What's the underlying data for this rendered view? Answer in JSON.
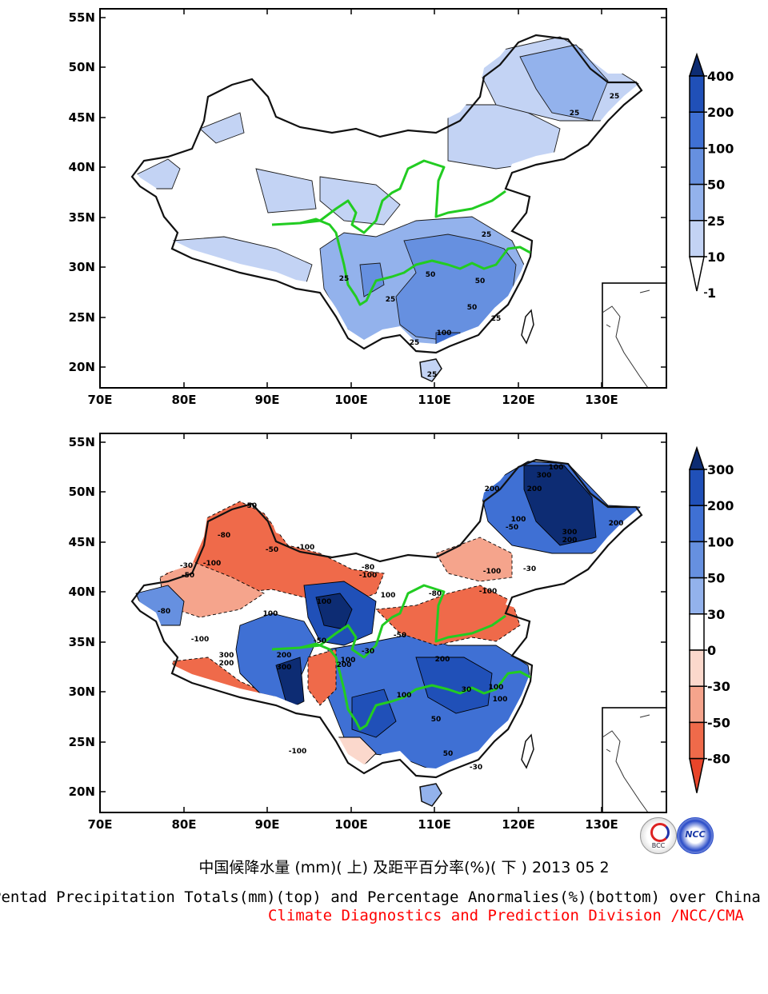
{
  "maps": [
    {
      "id": "top",
      "lat_labels": [
        "55N",
        "50N",
        "45N",
        "40N",
        "35N",
        "30N",
        "25N",
        "20N"
      ],
      "lon_labels": [
        "70E",
        "80E",
        "90E",
        "100E",
        "110E",
        "120E",
        "130E"
      ],
      "colorbar": {
        "labels": [
          "400",
          "200",
          "100",
          "50",
          "25",
          "10",
          "1"
        ],
        "colors": [
          "#0d2c73",
          "#2050b8",
          "#3f70d4",
          "#6690e0",
          "#93b2ec",
          "#c3d3f4",
          "#ffffff"
        ]
      },
      "contour_labels": [
        "25",
        "25",
        "25",
        "25",
        "50",
        "50",
        "50",
        "100",
        "25",
        "25",
        "25",
        "25"
      ]
    },
    {
      "id": "bottom",
      "lat_labels": [
        "55N",
        "50N",
        "45N",
        "40N",
        "35N",
        "30N",
        "25N",
        "20N"
      ],
      "lon_labels": [
        "70E",
        "80E",
        "90E",
        "100E",
        "110E",
        "120E",
        "130E"
      ],
      "colorbar": {
        "labels": [
          "300",
          "200",
          "100",
          "50",
          "30",
          "0",
          "-30",
          "-50",
          "-80"
        ],
        "colors": [
          "#0d2c73",
          "#2050b8",
          "#3f70d4",
          "#6690e0",
          "#93b2ec",
          "#ffffff",
          "#fbd8cc",
          "#f5a48c",
          "#ef6a4a",
          "#e8452a"
        ]
      },
      "contour_labels": [
        "100",
        "300",
        "200",
        "200",
        "100",
        "300",
        "200",
        "200",
        "-50",
        "-50",
        "-80",
        "-100",
        "-100",
        "-80",
        "-100",
        "-30",
        "-50",
        "-80",
        "-100",
        "300",
        "200",
        "100",
        "100",
        "-100",
        "-50",
        "300",
        "200",
        "200",
        "100",
        "-30",
        "100",
        "50",
        "100",
        "-100",
        "-50",
        "100",
        "-30",
        "200",
        "50",
        "100",
        "30",
        "-80",
        "-100",
        "-50",
        "-30"
      ]
    }
  ],
  "captions": {
    "chinese": "中国候降水量 (mm)( 上) 及距平百分率(%)( 下 ) 2013 05 2",
    "english": "Pentad Precipitation Totals(mm)(top) and Percentage Anormalies(%)(bottom) over China",
    "credit": "Climate Diagnostics and Prediction Division /NCC/CMA"
  },
  "logos": [
    "BCC",
    "NCC"
  ],
  "colors": {
    "river": "#22cc22",
    "credit": "#ff0000"
  }
}
